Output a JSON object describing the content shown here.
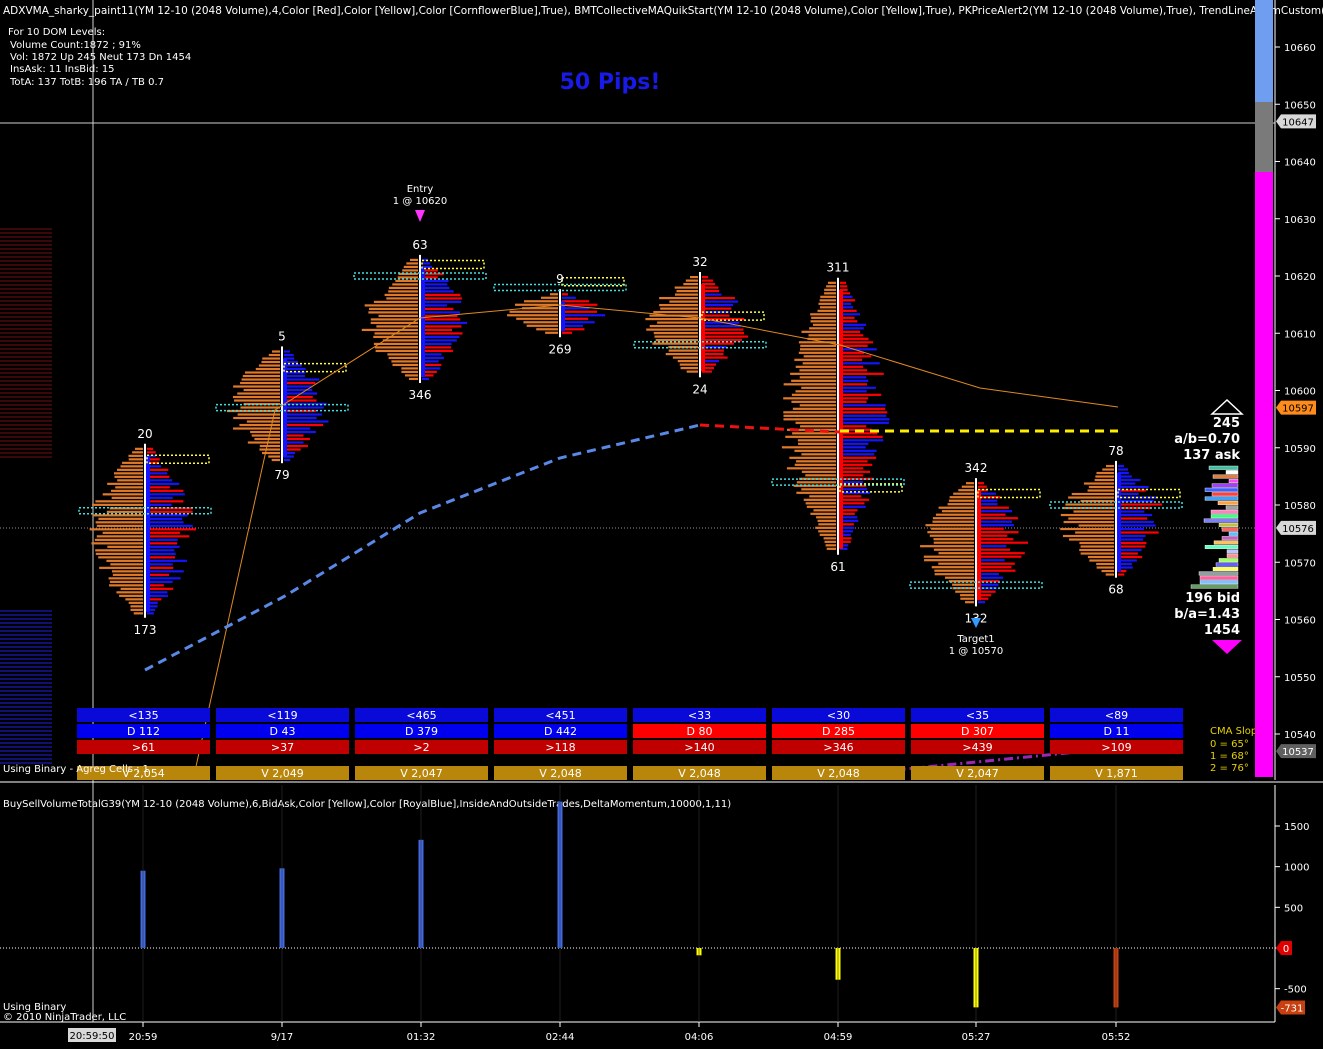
{
  "header": {
    "indicator_line": "ADXVMA_sharky_paint11(YM 12-10 (2048 Volume),4,Color [Red],Color [Yellow],Color [CornflowerBlue],True), BMTCollectiveMAQuikStart(YM 12-10 (2048 Volume),Color [Yellow],True), PKPriceAlert2(YM 12-10 (2048 Volume),True), TrendLineAlarmCustom(YM",
    "dom_lines": [
      "For 10 DOM Levels:",
      "Volume Count:1872 ; 91%",
      "Vol: 1872   Up 245  Neut  173   Dn 1454",
      "InsAsk: 11   InsBid: 15",
      "TotA: 137  TotB: 196  TA / TB 0.7"
    ],
    "banner": "50 Pips!"
  },
  "price_axis": {
    "ticks": [
      "10660",
      "10650",
      "10640",
      "10630",
      "10620",
      "10610",
      "10600",
      "10590",
      "10580",
      "10570",
      "10560",
      "10550",
      "10540"
    ],
    "markers": [
      {
        "label": "10647",
        "color": "#d8d8d8",
        "text_color": "#000000"
      },
      {
        "label": "10597",
        "color": "#ff8c1a",
        "text_color": "#000000"
      },
      {
        "label": "10576",
        "color": "#d8d8d8",
        "text_color": "#000000"
      },
      {
        "label": "10537",
        "color": "#606060",
        "text_color": "#ffffff"
      }
    ]
  },
  "bars": [
    {
      "time": "20:59",
      "top": "20",
      "bottom": "173",
      "lt": "<135",
      "d": "D 112",
      "gt": ">61",
      "v": "V 2,054",
      "d_color": "#0000ee"
    },
    {
      "time": "9/17",
      "top": "5",
      "bottom": "79",
      "lt": "<119",
      "d": "D 43",
      "gt": ">37",
      "v": "V 2,049",
      "d_color": "#0000ee"
    },
    {
      "time": "01:32",
      "top": "63",
      "bottom": "346",
      "lt": "<465",
      "d": "D 379",
      "gt": ">2",
      "v": "V 2,047",
      "d_color": "#0000ee"
    },
    {
      "time": "02:44",
      "top": "9",
      "bottom": "269",
      "lt": "<451",
      "d": "D 442",
      "gt": ">118",
      "v": "V 2,048",
      "d_color": "#0000ee"
    },
    {
      "time": "04:06",
      "top": "32",
      "bottom": "24",
      "lt": "<33",
      "d": "D 80",
      "gt": ">140",
      "v": "V 2,048",
      "d_color": "#ff0000"
    },
    {
      "time": "04:59",
      "top": "311",
      "bottom": "61",
      "lt": "<30",
      "d": "D 285",
      "gt": ">346",
      "v": "V 2,048",
      "d_color": "#ff0000"
    },
    {
      "time": "05:27",
      "top": "342",
      "bottom": "132",
      "lt": "<35",
      "d": "D 307",
      "gt": ">439",
      "v": "V 2,047",
      "d_color": "#ff0000"
    },
    {
      "time": "05:52",
      "top": "78",
      "bottom": "68",
      "lt": "<89",
      "d": "D 11",
      "gt": ">109",
      "v": "V 1,871",
      "d_color": "#0000ee"
    }
  ],
  "annotations": {
    "entry_title": "Entry",
    "entry_detail": "1 @ 10620",
    "target_title": "Target1",
    "target_detail": "1 @ 10570"
  },
  "dom_panel": {
    "ask_count": "245",
    "ab_ratio": "a/b=0.70",
    "ask_total": "137 ask",
    "bid_total": "196 bid",
    "ba_ratio": "b/a=1.43",
    "bid_count": "1454"
  },
  "cma": {
    "title": "CMA Slope:",
    "lines": [
      "0 = 65°",
      "1 = 68°",
      "2 = 76°"
    ]
  },
  "status_text": "Using Binary  - Agreg Cells : 1",
  "lower_panel": {
    "title": "BuySellVolumeTotalG39(YM 12-10 (2048 Volume),6,BidAsk,Color  [Yellow],Color [RoyalBlue],InsideAndOutsideTrades,DeltaMomentum,10000,1,11)",
    "footer1": "Using Binary",
    "footer2": "© 2010 NinjaTrader, LLC",
    "ticks": [
      "1500",
      "1000",
      "500",
      "0",
      "-500"
    ],
    "zero_marker": "0",
    "last_marker": "-731"
  },
  "time_axis": {
    "cursor_label": "20:59:50"
  },
  "chart_data": {
    "type": "bar",
    "title": "",
    "categories": [
      "20:59",
      "9/17",
      "01:32",
      "02:44",
      "04:06",
      "04:59",
      "05:27",
      "05:52"
    ],
    "series": [
      {
        "values": [
          950,
          980,
          1330,
          1800,
          -90,
          -390,
          -730,
          -731
        ]
      }
    ],
    "ylim": [
      -750,
      1750
    ],
    "price_range": [
      10532,
      10668
    ]
  },
  "colors": {
    "ask_bar": "#e07a2a",
    "bid_bar": "#ff0000",
    "buy_bar": "#1414ff",
    "delta_pos": "#4169e1",
    "delta_neg_yellow": "#ffff00",
    "delta_neg_red": "#c84010"
  }
}
